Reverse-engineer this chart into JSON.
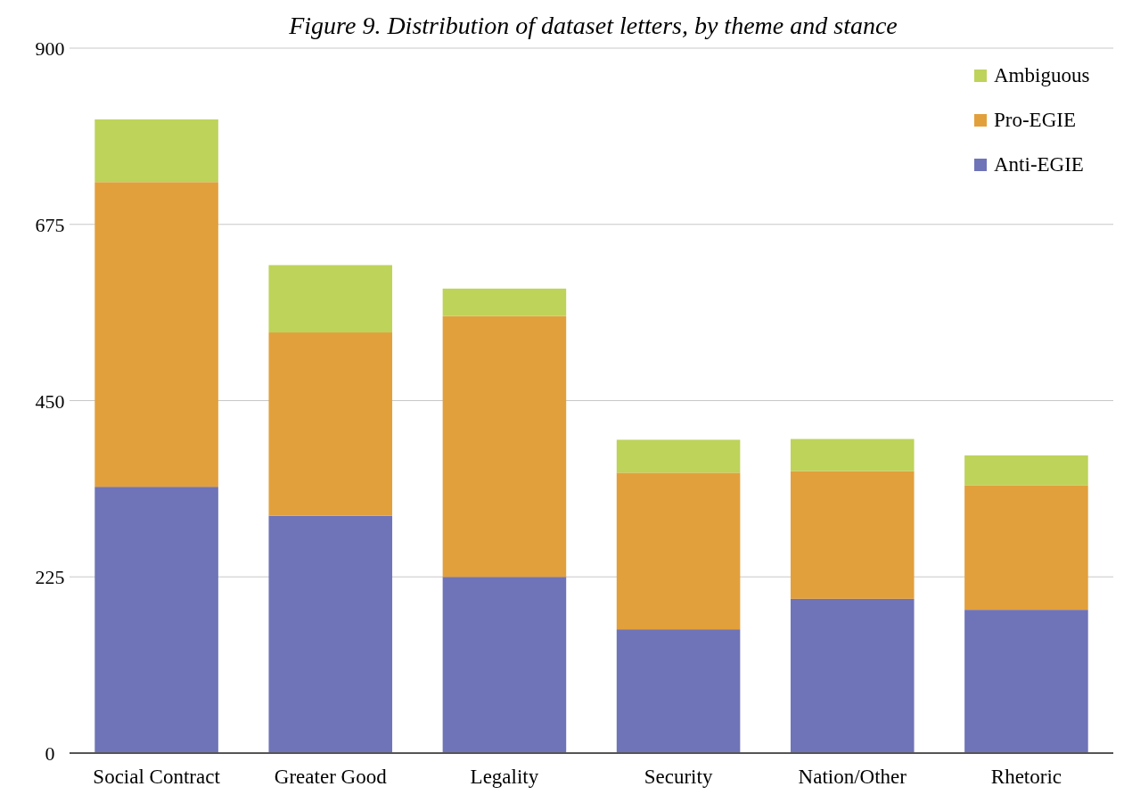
{
  "chart_data": {
    "type": "bar",
    "title": "Figure 9. Distribution of dataset letters, by theme and stance",
    "categories": [
      "Social Contract",
      "Greater Good",
      "Legality",
      "Security",
      "Nation/Other",
      "Rhetoric"
    ],
    "stacked": true,
    "series": [
      {
        "name": "Anti-EGIE",
        "color": "#6f74b8",
        "values": [
          340,
          303,
          225,
          158,
          197,
          183
        ]
      },
      {
        "name": "Pro-EGIE",
        "color": "#e2a03c",
        "values": [
          389,
          234,
          333,
          200,
          163,
          159
        ]
      },
      {
        "name": "Ambiguous",
        "color": "#bdd35a",
        "values": [
          80,
          86,
          35,
          42,
          41,
          38
        ]
      }
    ],
    "ylim": [
      0,
      900
    ],
    "yticks": [
      0,
      225,
      450,
      675,
      900
    ],
    "grid": "y",
    "legend": "top right"
  }
}
